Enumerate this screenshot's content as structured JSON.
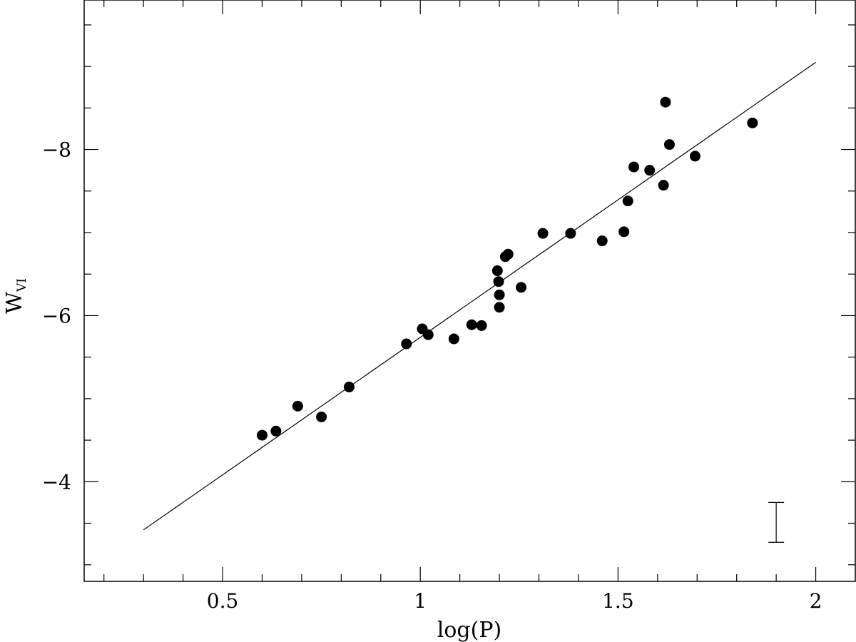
{
  "chart_data": {
    "type": "scatter",
    "xlabel": "log(P)",
    "ylabel": "W",
    "ylabel_subscript": "VI",
    "xlim": [
      0.15,
      2.1
    ],
    "ylim": [
      -2.8,
      -9.8
    ],
    "y_inverted": true,
    "x_ticks": [
      "0.5",
      "1",
      "1.5",
      "2"
    ],
    "y_ticks": [
      "−4",
      "−6",
      "−8"
    ],
    "grid": false,
    "points": [
      {
        "x": 0.6,
        "y": -4.56
      },
      {
        "x": 0.635,
        "y": -4.61
      },
      {
        "x": 0.69,
        "y": -4.91
      },
      {
        "x": 0.75,
        "y": -4.78
      },
      {
        "x": 0.82,
        "y": -5.14
      },
      {
        "x": 0.965,
        "y": -5.66
      },
      {
        "x": 1.005,
        "y": -5.84
      },
      {
        "x": 1.02,
        "y": -5.77
      },
      {
        "x": 1.085,
        "y": -5.72
      },
      {
        "x": 1.13,
        "y": -5.89
      },
      {
        "x": 1.155,
        "y": -5.88
      },
      {
        "x": 1.195,
        "y": -6.54
      },
      {
        "x": 1.198,
        "y": -6.41
      },
      {
        "x": 1.2,
        "y": -6.25
      },
      {
        "x": 1.2,
        "y": -6.1
      },
      {
        "x": 1.215,
        "y": -6.71
      },
      {
        "x": 1.222,
        "y": -6.74
      },
      {
        "x": 1.255,
        "y": -6.34
      },
      {
        "x": 1.31,
        "y": -6.99
      },
      {
        "x": 1.38,
        "y": -6.99
      },
      {
        "x": 1.46,
        "y": -6.9
      },
      {
        "x": 1.515,
        "y": -7.01
      },
      {
        "x": 1.525,
        "y": -7.38
      },
      {
        "x": 1.54,
        "y": -7.79
      },
      {
        "x": 1.58,
        "y": -7.75
      },
      {
        "x": 1.615,
        "y": -7.57
      },
      {
        "x": 1.62,
        "y": -8.57
      },
      {
        "x": 1.63,
        "y": -8.06
      },
      {
        "x": 1.695,
        "y": -7.92
      },
      {
        "x": 1.84,
        "y": -8.32
      }
    ],
    "fit_line": {
      "x": [
        0.3,
        2.0
      ],
      "y": [
        -3.42,
        -9.05
      ]
    },
    "error_bar": {
      "x": 1.9,
      "y_low": -3.27,
      "y_high": -3.75
    }
  }
}
